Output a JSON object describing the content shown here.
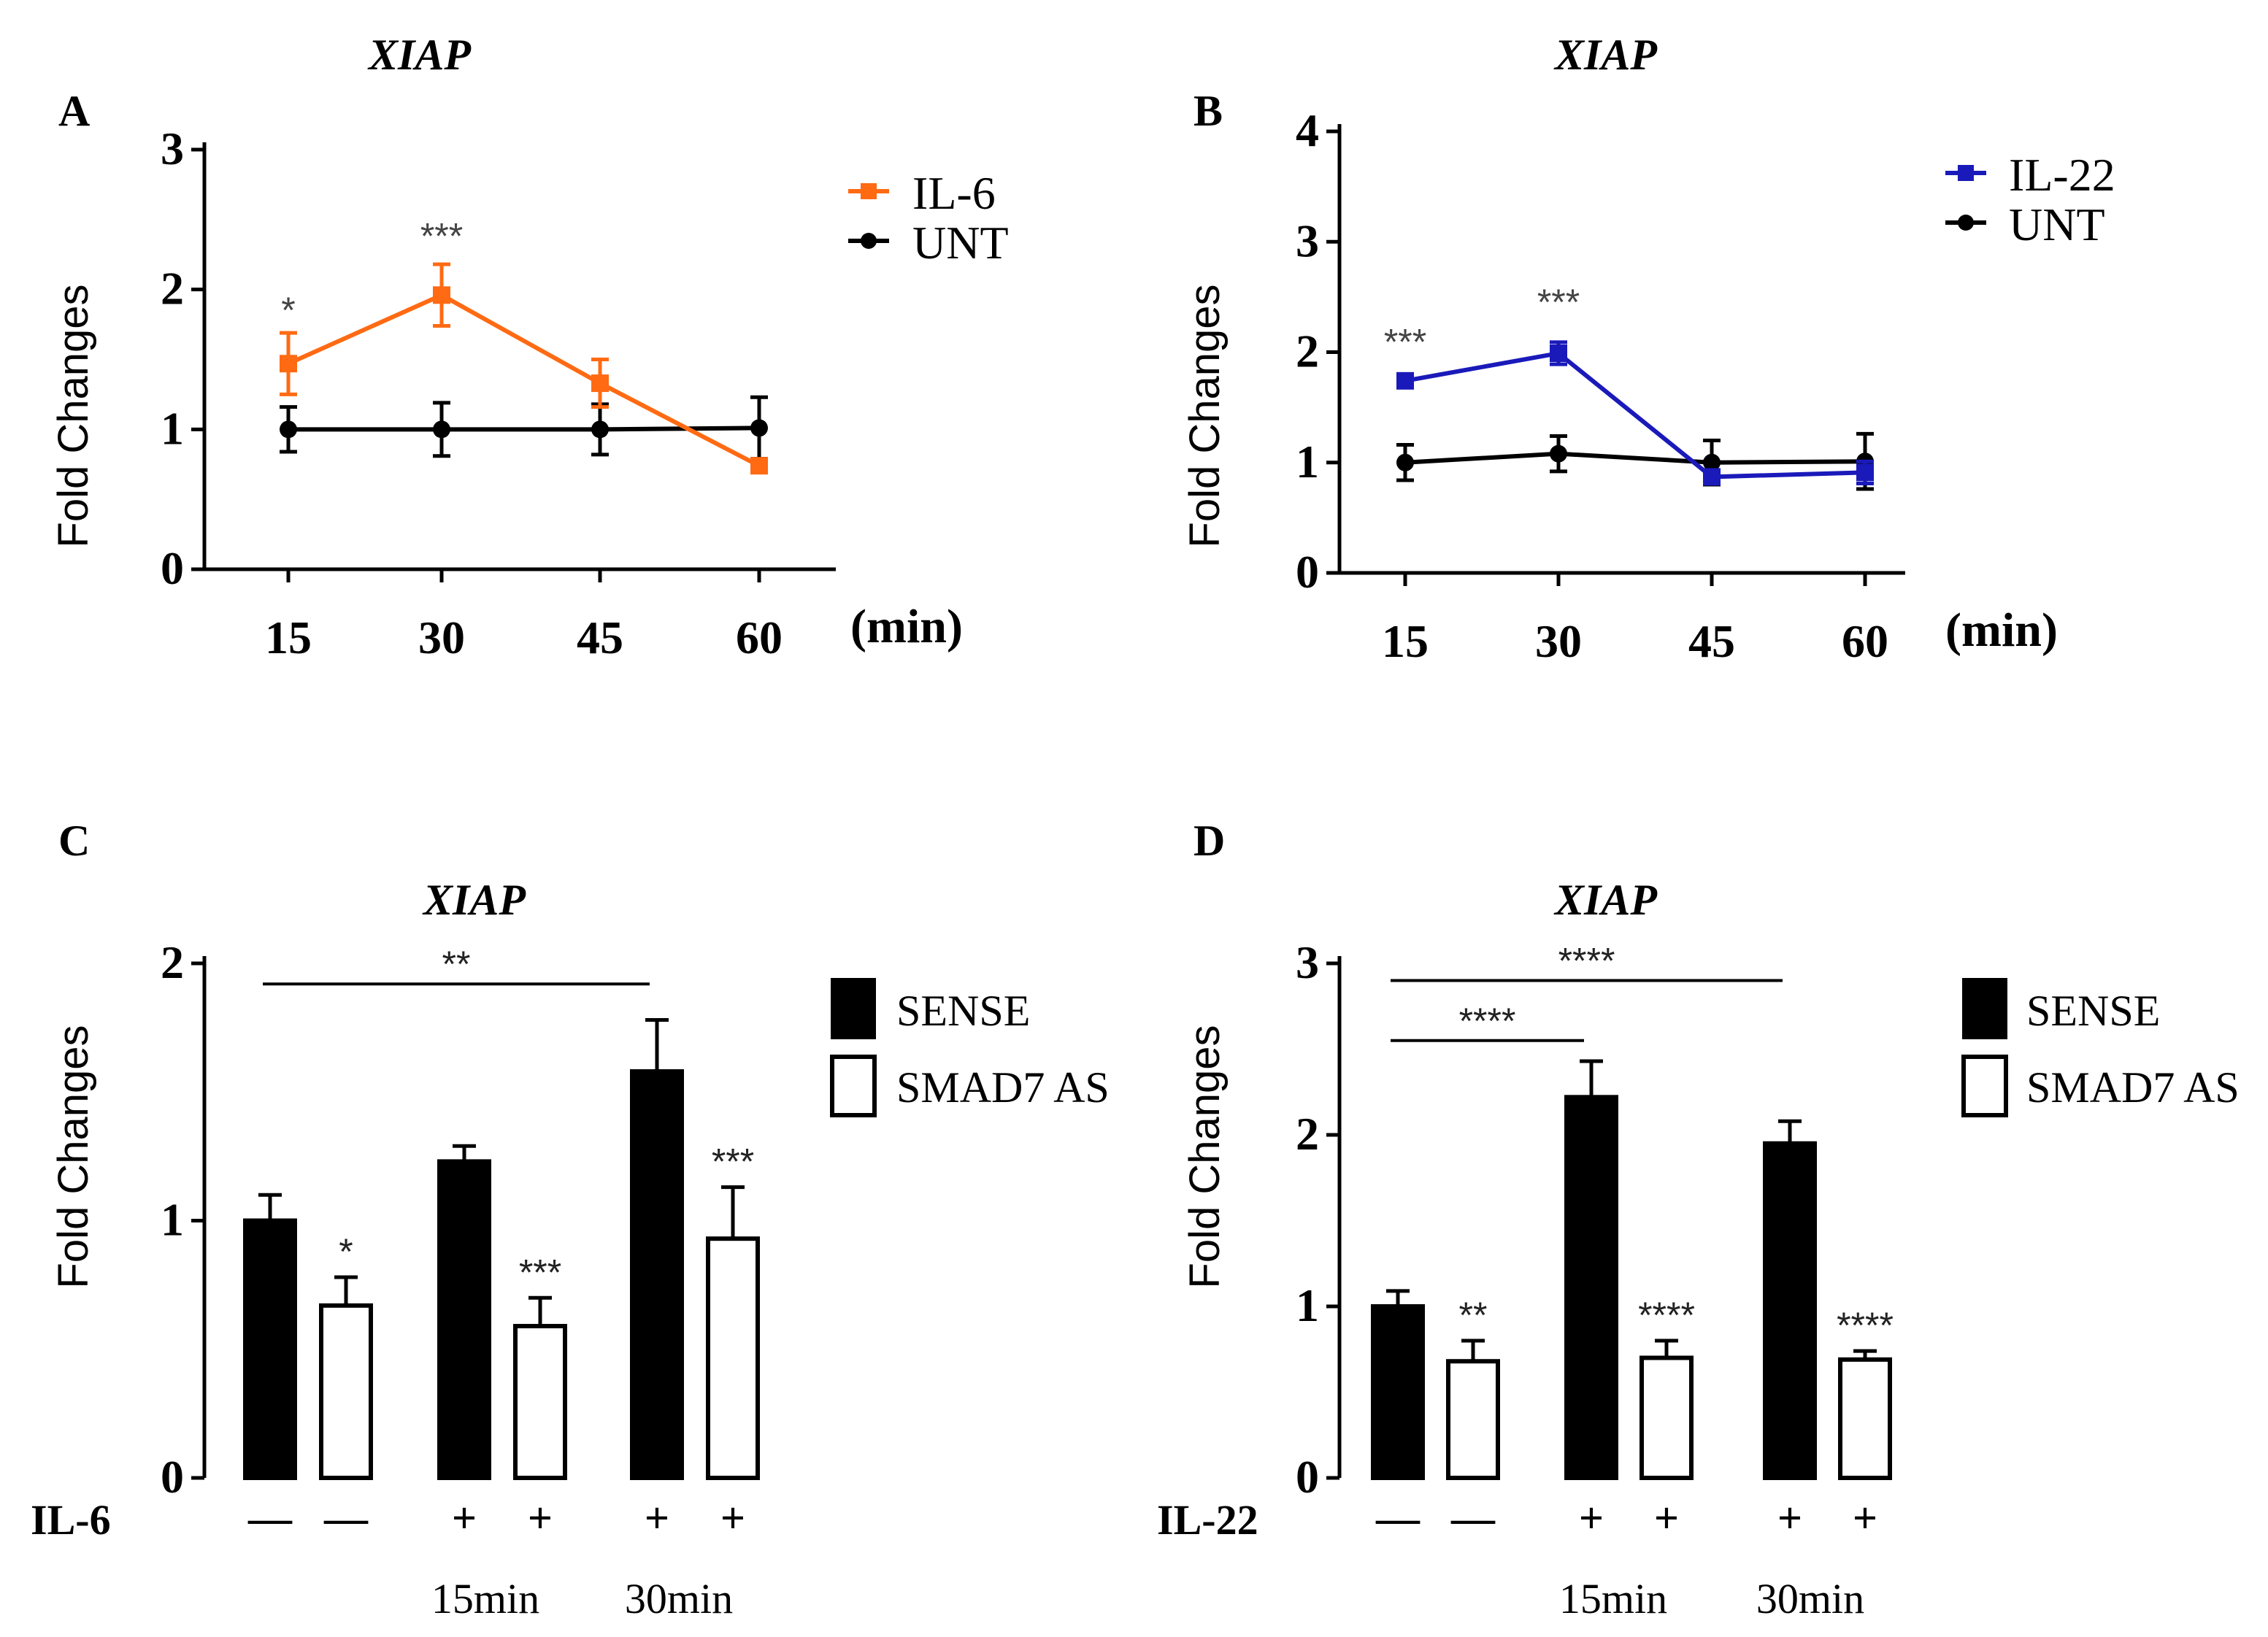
{
  "chart_data": [
    {
      "panel": "A",
      "type": "line",
      "title": "XIAP",
      "ylabel": "Fold Changes",
      "xunit": "(min)",
      "x": [
        "15",
        "30",
        "45",
        "60"
      ],
      "yticks": [
        "0",
        "1",
        "2",
        "3"
      ],
      "ylim": [
        0,
        3
      ],
      "series": [
        {
          "name": "IL-6",
          "color": "#ff6a13",
          "marker": "square",
          "values": [
            1.47,
            1.96,
            1.33,
            0.74
          ],
          "err": [
            0.22,
            0.22,
            0.17,
            0.03
          ]
        },
        {
          "name": "UNT",
          "color": "#000000",
          "marker": "circle",
          "values": [
            1.0,
            1.0,
            1.0,
            1.01
          ],
          "err": [
            0.16,
            0.19,
            0.18,
            0.22
          ]
        }
      ],
      "annotations": [
        {
          "x_index": 0,
          "y": 1.92,
          "text": "*"
        },
        {
          "x_index": 1,
          "y": 2.45,
          "text": "***"
        }
      ]
    },
    {
      "panel": "B",
      "type": "line",
      "title": "XIAP",
      "ylabel": "Fold Changes",
      "xunit": "(min)",
      "x": [
        "15",
        "30",
        "45",
        "60"
      ],
      "yticks": [
        "0",
        "1",
        "2",
        "3",
        "4"
      ],
      "ylim": [
        0,
        4
      ],
      "series": [
        {
          "name": "IL-22",
          "color": "#1a1aba",
          "marker": "square",
          "values": [
            1.74,
            1.99,
            0.87,
            0.91
          ],
          "err": [
            0.04,
            0.1,
            0.05,
            0.1
          ]
        },
        {
          "name": "UNT",
          "color": "#000000",
          "marker": "circle",
          "values": [
            1.0,
            1.08,
            1.0,
            1.01
          ],
          "err": [
            0.16,
            0.16,
            0.2,
            0.25
          ]
        }
      ],
      "annotations": [
        {
          "x_index": 0,
          "y": 2.18,
          "text": "***"
        },
        {
          "x_index": 1,
          "y": 2.54,
          "text": "***"
        }
      ]
    },
    {
      "panel": "C",
      "type": "bar",
      "title": "XIAP",
      "ylabel": "Fold Changes",
      "treatment_label": "IL-6",
      "yticks": [
        "0",
        "1",
        "2"
      ],
      "ylim": [
        0,
        2
      ],
      "series": [
        {
          "name": "SENSE",
          "fill": "#000000",
          "values": [
            1.0,
            1.23,
            1.58
          ],
          "err": [
            0.1,
            0.06,
            0.2
          ]
        },
        {
          "name": "SMAD7 AS",
          "fill": "#ffffff",
          "values": [
            0.67,
            0.59,
            0.93
          ],
          "err": [
            0.11,
            0.11,
            0.2
          ]
        }
      ],
      "treatment_signs": [
        "—",
        "—",
        "+",
        "+",
        "+",
        "+"
      ],
      "time_labels": [
        "15min",
        "30min"
      ],
      "bar_annotations": [
        "",
        "*",
        "",
        "***",
        "",
        "***"
      ],
      "brackets": [
        {
          "from_bar": 0,
          "to_bar": 4,
          "y": 1.92,
          "text": "**"
        }
      ]
    },
    {
      "panel": "D",
      "type": "bar",
      "title": "XIAP",
      "ylabel": "Fold Changes",
      "treatment_label": "IL-22",
      "yticks": [
        "0",
        "1",
        "2",
        "3"
      ],
      "ylim": [
        0,
        3
      ],
      "series": [
        {
          "name": "SENSE",
          "fill": "#000000",
          "values": [
            1.0,
            2.22,
            1.95
          ],
          "err": [
            0.09,
            0.21,
            0.13
          ]
        },
        {
          "name": "SMAD7 AS",
          "fill": "#ffffff",
          "values": [
            0.68,
            0.7,
            0.69
          ],
          "err": [
            0.12,
            0.1,
            0.05
          ]
        }
      ],
      "treatment_signs": [
        "—",
        "—",
        "+",
        "+",
        "+",
        "+"
      ],
      "time_labels": [
        "15min",
        "30min"
      ],
      "bar_annotations": [
        "",
        "**",
        "",
        "****",
        "",
        "****"
      ],
      "brackets": [
        {
          "from_bar": 0,
          "to_bar": 2,
          "y": 2.55,
          "text": "****"
        },
        {
          "from_bar": 0,
          "to_bar": 4,
          "y": 2.9,
          "text": "****"
        }
      ]
    }
  ]
}
